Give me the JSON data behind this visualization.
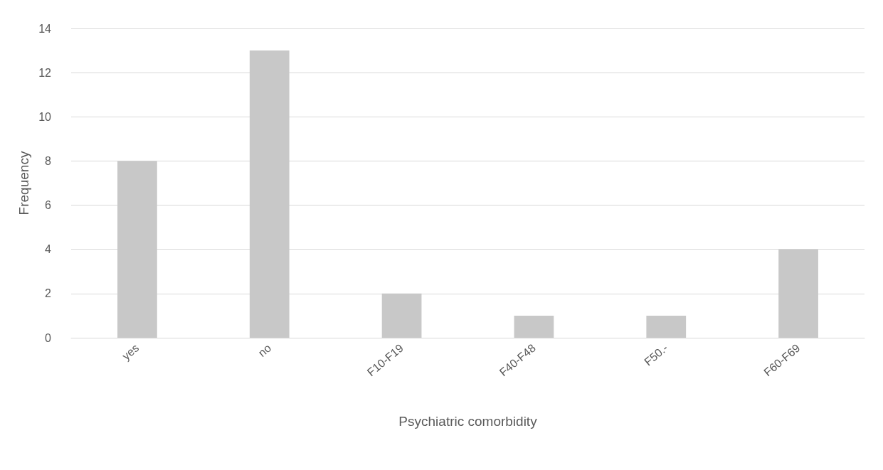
{
  "chart_data": {
    "type": "bar",
    "xlabel": "Psychiatric comorbidity",
    "ylabel": "Frequency",
    "categories": [
      "yes",
      "no",
      "F10-F19",
      "F40-F48",
      "F50.-",
      "F60-F69"
    ],
    "values": [
      8,
      13,
      2,
      1,
      1,
      4
    ],
    "color": "#c8c8c8",
    "ylim": [
      0,
      14
    ],
    "yticks": [
      0,
      2,
      4,
      6,
      8,
      10,
      12,
      14
    ],
    "grid": "y"
  }
}
